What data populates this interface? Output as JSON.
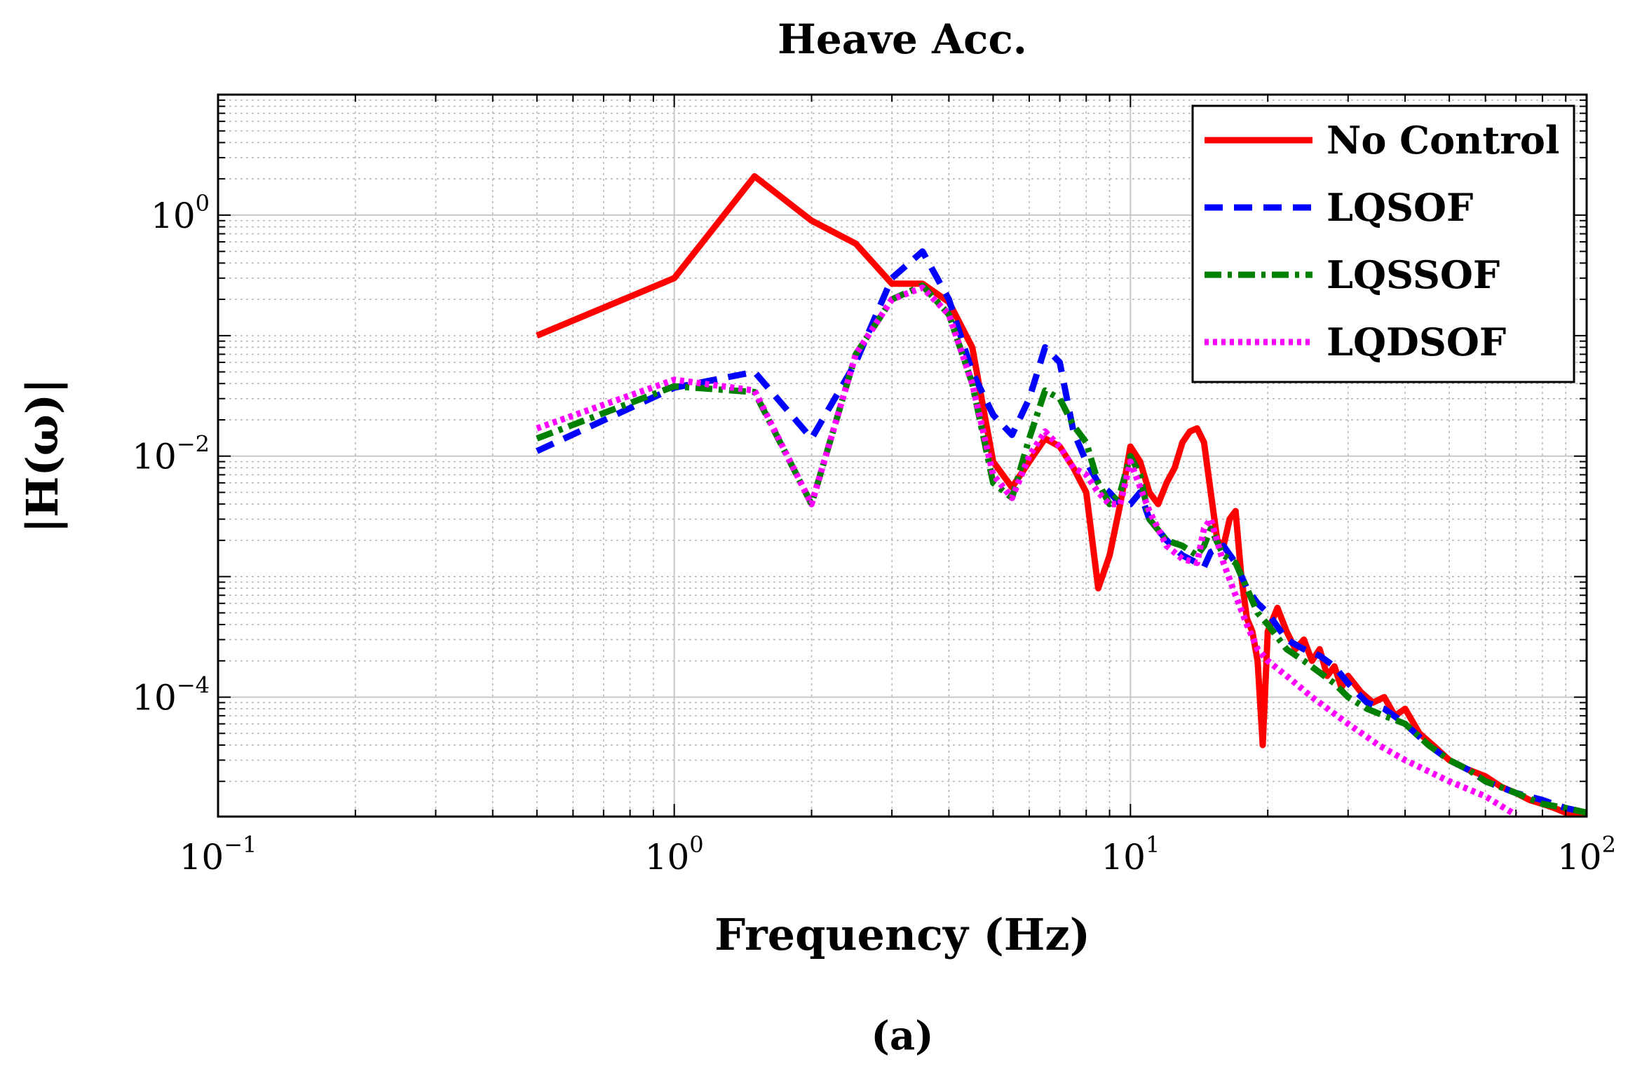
{
  "chart_data": {
    "type": "line",
    "title": "Heave Acc.",
    "xlabel": "Frequency (Hz)",
    "ylabel": "|H(ω)|",
    "caption": "(a)",
    "xscale": "log",
    "yscale": "log",
    "xlim": [
      0.1,
      100
    ],
    "ylim": [
      1.02e-05,
      10
    ],
    "grid": true,
    "legend_position": "top-right",
    "xticks": [
      {
        "value": 0.1,
        "base": "10",
        "exp": "−1"
      },
      {
        "value": 1,
        "base": "10",
        "exp": "0"
      },
      {
        "value": 10,
        "base": "10",
        "exp": "1"
      },
      {
        "value": 100,
        "base": "10",
        "exp": "2"
      }
    ],
    "yticks": [
      {
        "value": 1,
        "base": "10",
        "exp": "0"
      },
      {
        "value": 0.01,
        "base": "10",
        "exp": "−2"
      },
      {
        "value": 0.0001,
        "base": "10",
        "exp": "−4"
      }
    ],
    "series": [
      {
        "name": "No Control",
        "color": "#ff0000",
        "dash": "solid",
        "x": [
          0.5,
          1.0,
          1.5,
          2.0,
          2.5,
          3.0,
          3.5,
          4.0,
          4.5,
          5.0,
          5.5,
          6.0,
          6.5,
          7.0,
          7.5,
          8.0,
          8.5,
          9.0,
          9.5,
          10.0,
          10.5,
          11.0,
          11.5,
          12.0,
          12.5,
          13.0,
          13.5,
          14.0,
          14.5,
          15.0,
          15.5,
          16.0,
          16.5,
          17.0,
          17.5,
          18.0,
          18.5,
          19.0,
          19.5,
          20.0,
          21.0,
          22.0,
          23.0,
          24.0,
          25.0,
          26.0,
          27.0,
          28.0,
          29.0,
          30.0,
          32.0,
          34.0,
          36.0,
          38.0,
          40.0,
          43.0,
          46.0,
          50.0,
          55.0,
          60.0,
          65.0,
          70.0,
          75.0,
          80.0,
          85.0,
          90.0,
          95.0,
          100.0
        ],
        "y": [
          0.1,
          0.3,
          2.1,
          0.9,
          0.58,
          0.27,
          0.27,
          0.19,
          0.08,
          0.009,
          0.0055,
          0.009,
          0.014,
          0.012,
          0.008,
          0.005,
          0.0008,
          0.0015,
          0.004,
          0.012,
          0.009,
          0.005,
          0.004,
          0.006,
          0.008,
          0.013,
          0.016,
          0.017,
          0.013,
          0.005,
          0.002,
          0.0018,
          0.003,
          0.0035,
          0.001,
          0.00045,
          0.00035,
          0.0002,
          4e-05,
          0.00035,
          0.00055,
          0.00035,
          0.00025,
          0.0003,
          0.0002,
          0.00025,
          0.00015,
          0.00018,
          0.00012,
          0.00015,
          0.00011,
          9e-05,
          0.0001,
          7e-05,
          8e-05,
          5e-05,
          4e-05,
          3e-05,
          2.5e-05,
          2.2e-05,
          1.8e-05,
          1.6e-05,
          1.4e-05,
          1.3e-05,
          1.2e-05,
          1.1e-05,
          1.1e-05,
          1.05e-05
        ]
      },
      {
        "name": "LQSOF",
        "color": "#0000ff",
        "dash": "dashed",
        "x": [
          0.5,
          1.0,
          1.5,
          2.0,
          2.5,
          3.0,
          3.5,
          4.0,
          4.5,
          5.0,
          5.5,
          6.0,
          6.5,
          7.0,
          7.5,
          8.0,
          8.5,
          9.0,
          9.5,
          10.0,
          10.5,
          11.0,
          12.0,
          13.0,
          14.0,
          14.5,
          15.0,
          16.0,
          17.0,
          18.0,
          19.0,
          20.0,
          22.0,
          24.0,
          26.0,
          28.0,
          30.0,
          33.0,
          36.0,
          40.0,
          45.0,
          50.0,
          55.0,
          60.0,
          70.0,
          80.0,
          90.0,
          100.0
        ],
        "y": [
          0.011,
          0.037,
          0.05,
          0.014,
          0.06,
          0.3,
          0.5,
          0.2,
          0.05,
          0.022,
          0.015,
          0.03,
          0.08,
          0.06,
          0.016,
          0.009,
          0.006,
          0.005,
          0.004,
          0.004,
          0.005,
          0.003,
          0.002,
          0.0015,
          0.0013,
          0.0012,
          0.0016,
          0.0018,
          0.0013,
          0.0008,
          0.0006,
          0.0005,
          0.0003,
          0.00025,
          0.00022,
          0.00018,
          0.00013,
          9e-05,
          8e-05,
          6e-05,
          4e-05,
          3e-05,
          2.5e-05,
          2e-05,
          1.6e-05,
          1.4e-05,
          1.2e-05,
          1.1e-05
        ]
      },
      {
        "name": "LQSSOF",
        "color": "#008000",
        "dash": "dashdot",
        "x": [
          0.5,
          1.0,
          1.5,
          2.0,
          2.5,
          3.0,
          3.5,
          4.0,
          4.5,
          5.0,
          5.5,
          6.0,
          6.5,
          7.0,
          7.5,
          8.0,
          8.5,
          9.0,
          9.5,
          10.0,
          10.5,
          11.0,
          12.0,
          13.0,
          14.0,
          14.5,
          15.0,
          16.0,
          17.0,
          18.0,
          19.0,
          20.0,
          22.0,
          24.0,
          26.0,
          28.0,
          30.0,
          33.0,
          36.0,
          40.0,
          45.0,
          50.0,
          55.0,
          60.0,
          70.0,
          80.0,
          90.0,
          100.0
        ],
        "y": [
          0.014,
          0.038,
          0.034,
          0.004,
          0.07,
          0.2,
          0.26,
          0.15,
          0.04,
          0.006,
          0.0045,
          0.014,
          0.035,
          0.03,
          0.018,
          0.013,
          0.006,
          0.004,
          0.005,
          0.01,
          0.007,
          0.003,
          0.002,
          0.0018,
          0.0015,
          0.0018,
          0.0025,
          0.0015,
          0.0013,
          0.0008,
          0.0005,
          0.0004,
          0.00025,
          0.0002,
          0.00016,
          0.00013,
          0.0001,
          8e-05,
          7e-05,
          6e-05,
          4e-05,
          3e-05,
          2.5e-05,
          2e-05,
          1.6e-05,
          1.3e-05,
          1.2e-05,
          1.1e-05
        ]
      },
      {
        "name": "LQDSOF",
        "color": "#ff00ff",
        "dash": "dotted",
        "x": [
          0.5,
          1.0,
          1.5,
          2.0,
          2.5,
          3.0,
          3.5,
          4.0,
          4.5,
          5.0,
          5.5,
          6.0,
          6.5,
          7.0,
          7.5,
          8.0,
          8.5,
          9.0,
          9.5,
          10.0,
          11.0,
          12.0,
          13.0,
          14.0,
          14.5,
          15.0,
          16.0,
          17.0,
          18.0,
          19.0,
          20.0,
          22.0,
          25.0,
          30.0,
          35.0,
          40.0,
          50.0,
          60.0,
          70.0
        ],
        "y": [
          0.017,
          0.043,
          0.035,
          0.004,
          0.07,
          0.2,
          0.25,
          0.15,
          0.04,
          0.007,
          0.0045,
          0.01,
          0.016,
          0.012,
          0.008,
          0.007,
          0.005,
          0.004,
          0.004,
          0.009,
          0.0035,
          0.0018,
          0.0014,
          0.0013,
          0.0025,
          0.003,
          0.0013,
          0.0007,
          0.0004,
          0.00025,
          0.0002,
          0.00015,
          0.0001,
          6e-05,
          4e-05,
          3e-05,
          2e-05,
          1.5e-05,
          1.05e-05
        ]
      }
    ]
  }
}
